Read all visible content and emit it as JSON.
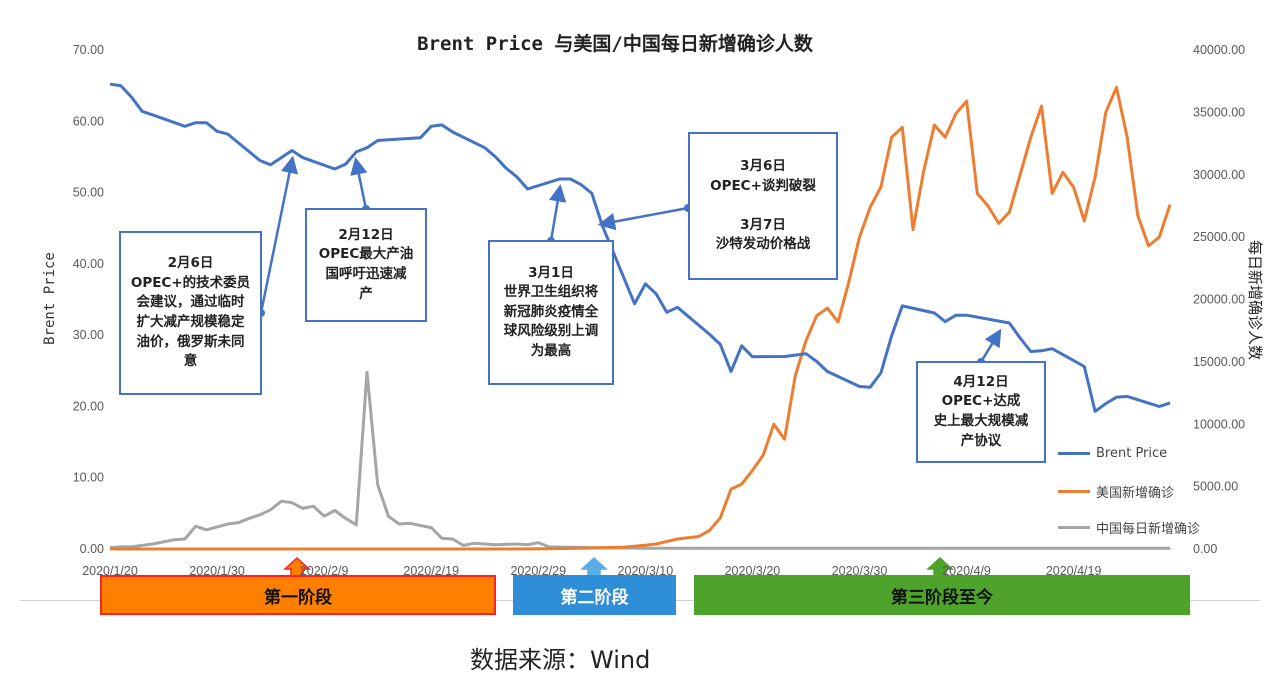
{
  "chart_data": {
    "type": "line",
    "title": "Brent Price 与美国/中国每日新增确诊人数",
    "ylabel": "Brent Price",
    "y2label": "每日新增确诊人数",
    "ylim": [
      0,
      70
    ],
    "y2lim": [
      0,
      40000
    ],
    "yticks": [
      "0.00",
      "10.00",
      "20.00",
      "30.00",
      "40.00",
      "50.00",
      "60.00",
      "70.00"
    ],
    "y2ticks": [
      "0.00",
      "5000.00",
      "10000.00",
      "15000.00",
      "20000.00",
      "25000.00",
      "30000.00",
      "35000.00",
      "40000.00"
    ],
    "xticks": [
      "2020/1/20",
      "2020/1/30",
      "2020/2/9",
      "2020/2/19",
      "2020/2/29",
      "2020/3/10",
      "2020/3/20",
      "2020/3/30",
      "2020/4/9",
      "2020/4/19"
    ],
    "legend_position": "right",
    "series": [
      {
        "name": "Brent Price",
        "color": "#4472c4",
        "axis": "left",
        "points": [
          [
            "2020/1/20",
            65.2
          ],
          [
            "2020/1/21",
            65.0
          ],
          [
            "2020/1/22",
            63.4
          ],
          [
            "2020/1/23",
            61.4
          ],
          [
            "2020/1/24",
            60.9
          ],
          [
            "2020/1/27",
            59.3
          ],
          [
            "2020/1/28",
            59.8
          ],
          [
            "2020/1/29",
            59.8
          ],
          [
            "2020/1/30",
            58.6
          ],
          [
            "2020/1/31",
            58.2
          ],
          [
            "2020/2/3",
            54.5
          ],
          [
            "2020/2/4",
            53.9
          ],
          [
            "2020/2/5",
            54.9
          ],
          [
            "2020/2/6",
            55.9
          ],
          [
            "2020/2/7",
            54.9
          ],
          [
            "2020/2/10",
            53.3
          ],
          [
            "2020/2/11",
            54.0
          ],
          [
            "2020/2/12",
            55.7
          ],
          [
            "2020/2/13",
            56.3
          ],
          [
            "2020/2/14",
            57.3
          ],
          [
            "2020/2/18",
            57.7
          ],
          [
            "2020/2/19",
            59.3
          ],
          [
            "2020/2/20",
            59.5
          ],
          [
            "2020/2/21",
            58.5
          ],
          [
            "2020/2/24",
            56.3
          ],
          [
            "2020/2/25",
            55.0
          ],
          [
            "2020/2/26",
            53.4
          ],
          [
            "2020/2/27",
            52.2
          ],
          [
            "2020/2/28",
            50.5
          ],
          [
            "2020/3/2",
            51.9
          ],
          [
            "2020/3/3",
            51.9
          ],
          [
            "2020/3/4",
            51.1
          ],
          [
            "2020/3/5",
            49.9
          ],
          [
            "2020/3/6",
            45.3
          ],
          [
            "2020/3/9",
            34.4
          ],
          [
            "2020/3/10",
            37.2
          ],
          [
            "2020/3/11",
            35.8
          ],
          [
            "2020/3/12",
            33.2
          ],
          [
            "2020/3/13",
            33.9
          ],
          [
            "2020/3/16",
            30.1
          ],
          [
            "2020/3/17",
            28.7
          ],
          [
            "2020/3/18",
            24.9
          ],
          [
            "2020/3/19",
            28.5
          ],
          [
            "2020/3/20",
            26.98
          ],
          [
            "2020/3/23",
            27.0
          ],
          [
            "2020/3/24",
            27.2
          ],
          [
            "2020/3/25",
            27.4
          ],
          [
            "2020/3/26",
            26.3
          ],
          [
            "2020/3/27",
            24.9
          ],
          [
            "2020/3/30",
            22.8
          ],
          [
            "2020/3/31",
            22.7
          ],
          [
            "2020/4/1",
            24.7
          ],
          [
            "2020/4/2",
            29.9
          ],
          [
            "2020/4/3",
            34.1
          ],
          [
            "2020/4/6",
            33.1
          ],
          [
            "2020/4/7",
            31.9
          ],
          [
            "2020/4/8",
            32.8
          ],
          [
            "2020/4/9",
            32.8
          ],
          [
            "2020/4/13",
            31.7
          ],
          [
            "2020/4/14",
            29.6
          ],
          [
            "2020/4/15",
            27.7
          ],
          [
            "2020/4/16",
            27.8
          ],
          [
            "2020/4/17",
            28.1
          ],
          [
            "2020/4/20",
            25.6
          ],
          [
            "2020/4/21",
            19.3
          ],
          [
            "2020/4/22",
            20.4
          ],
          [
            "2020/4/23",
            21.3
          ],
          [
            "2020/4/24",
            21.4
          ],
          [
            "2020/4/27",
            19.99
          ],
          [
            "2020/4/28",
            20.5
          ]
        ]
      },
      {
        "name": "美国新增确诊",
        "color": "#ed7d31",
        "axis": "right",
        "points": [
          [
            "2020/1/20",
            0
          ],
          [
            "2020/2/25",
            0
          ],
          [
            "2020/3/1",
            20
          ],
          [
            "2020/3/5",
            80
          ],
          [
            "2020/3/8",
            150
          ],
          [
            "2020/3/10",
            300
          ],
          [
            "2020/3/11",
            400
          ],
          [
            "2020/3/12",
            600
          ],
          [
            "2020/3/13",
            800
          ],
          [
            "2020/3/14",
            900
          ],
          [
            "2020/3/15",
            1000
          ],
          [
            "2020/3/16",
            1500
          ],
          [
            "2020/3/17",
            2500
          ],
          [
            "2020/3/18",
            4800
          ],
          [
            "2020/3/19",
            5200
          ],
          [
            "2020/3/20",
            6300
          ],
          [
            "2020/3/21",
            7500
          ],
          [
            "2020/3/22",
            10000
          ],
          [
            "2020/3/23",
            8800
          ],
          [
            "2020/3/24",
            13900
          ],
          [
            "2020/3/25",
            16700
          ],
          [
            "2020/3/26",
            18700
          ],
          [
            "2020/3/27",
            19300
          ],
          [
            "2020/3/28",
            18200
          ],
          [
            "2020/3/29",
            21400
          ],
          [
            "2020/3/30",
            25000
          ],
          [
            "2020/3/31",
            27400
          ],
          [
            "2020/4/1",
            29000
          ],
          [
            "2020/4/2",
            33000
          ],
          [
            "2020/4/3",
            33800
          ],
          [
            "2020/4/4",
            25600
          ],
          [
            "2020/4/5",
            30300
          ],
          [
            "2020/4/6",
            34000
          ],
          [
            "2020/4/7",
            33000
          ],
          [
            "2020/4/8",
            34900
          ],
          [
            "2020/4/9",
            35900
          ],
          [
            "2020/4/10",
            28500
          ],
          [
            "2020/4/11",
            27500
          ],
          [
            "2020/4/12",
            26100
          ],
          [
            "2020/4/13",
            27000
          ],
          [
            "2020/4/14",
            30000
          ],
          [
            "2020/4/15",
            33000
          ],
          [
            "2020/4/16",
            35500
          ],
          [
            "2020/4/17",
            28500
          ],
          [
            "2020/4/18",
            30200
          ],
          [
            "2020/4/19",
            29000
          ],
          [
            "2020/4/20",
            26300
          ],
          [
            "2020/4/21",
            29800
          ],
          [
            "2020/4/22",
            35000
          ],
          [
            "2020/4/23",
            37000
          ],
          [
            "2020/4/24",
            33000
          ],
          [
            "2020/4/25",
            26700
          ],
          [
            "2020/4/26",
            24300
          ],
          [
            "2020/4/27",
            25000
          ],
          [
            "2020/4/28",
            27600
          ]
        ]
      },
      {
        "name": "中国每日新增确诊",
        "color": "#a5a5a5",
        "axis": "left",
        "points": [
          [
            "2020/1/20",
            0.2
          ],
          [
            "2020/1/21",
            0.3
          ],
          [
            "2020/1/22",
            0.3
          ],
          [
            "2020/1/23",
            0.5
          ],
          [
            "2020/1/24",
            0.7
          ],
          [
            "2020/1/25",
            1.0
          ],
          [
            "2020/1/26",
            1.3
          ],
          [
            "2020/1/27",
            1.4
          ],
          [
            "2020/1/28",
            3.2
          ],
          [
            "2020/1/29",
            2.7
          ],
          [
            "2020/1/30",
            3.1
          ],
          [
            "2020/1/31",
            3.5
          ],
          [
            "2020/2/1",
            3.7
          ],
          [
            "2020/2/2",
            4.3
          ],
          [
            "2020/2/3",
            4.8
          ],
          [
            "2020/2/4",
            5.5
          ],
          [
            "2020/2/5",
            6.7
          ],
          [
            "2020/2/6",
            6.5
          ],
          [
            "2020/2/7",
            5.7
          ],
          [
            "2020/2/8",
            6.0
          ],
          [
            "2020/2/9",
            4.6
          ],
          [
            "2020/2/10",
            5.4
          ],
          [
            "2020/2/11",
            4.3
          ],
          [
            "2020/2/12",
            3.4
          ],
          [
            "2020/2/13",
            24.8
          ],
          [
            "2020/2/14",
            9.0
          ],
          [
            "2020/2/15",
            4.6
          ],
          [
            "2020/2/16",
            3.5
          ],
          [
            "2020/2/17",
            3.6
          ],
          [
            "2020/2/18",
            3.3
          ],
          [
            "2020/2/19",
            3.0
          ],
          [
            "2020/2/20",
            1.5
          ],
          [
            "2020/2/21",
            1.4
          ],
          [
            "2020/2/22",
            0.5
          ],
          [
            "2020/2/23",
            0.8
          ],
          [
            "2020/2/25",
            0.6
          ],
          [
            "2020/2/27",
            0.7
          ],
          [
            "2020/2/28",
            0.6
          ],
          [
            "2020/2/29",
            0.9
          ],
          [
            "2020/3/1",
            0.3
          ],
          [
            "2020/3/5",
            0.2
          ],
          [
            "2020/3/10",
            0.1
          ],
          [
            "2020/4/28",
            0.1
          ]
        ]
      }
    ],
    "annotations": [
      {
        "text": "2月6日\nOPEC+的技术委员\n会建议，通过临时\n扩大减产规模稳定\n油价，俄罗斯未同\n意",
        "target_date": "2020/2/6",
        "target_value": 55.9
      },
      {
        "text": "2月12日\nOPEC最大产油\n国呼吁迅速减\n产",
        "target_date": "2020/2/12",
        "target_value": 55.7
      },
      {
        "text": "3月1日\n世界卫生组织将\n新冠肺炎疫情全\n球风险级别上调\n为最高",
        "target_date": "2020/3/2",
        "target_value": 51.9
      },
      {
        "text": "3月6日\nOPEC+谈判破裂\n\n3月7日\n沙特发动价格战",
        "target_date": "2020/3/6",
        "target_value": 47
      },
      {
        "text": "4月12日\nOPEC+达成\n史上最大规模减\n产协议",
        "target_date": "2020/4/12",
        "target_value": 31.7
      }
    ],
    "stages": [
      {
        "label": "第一阶段",
        "color": "#ff7f00"
      },
      {
        "label": "第二阶段",
        "color": "#2e8fd8"
      },
      {
        "label": "第三阶段至今",
        "color": "#4ea32a"
      }
    ]
  },
  "source": "数据来源：Wind"
}
